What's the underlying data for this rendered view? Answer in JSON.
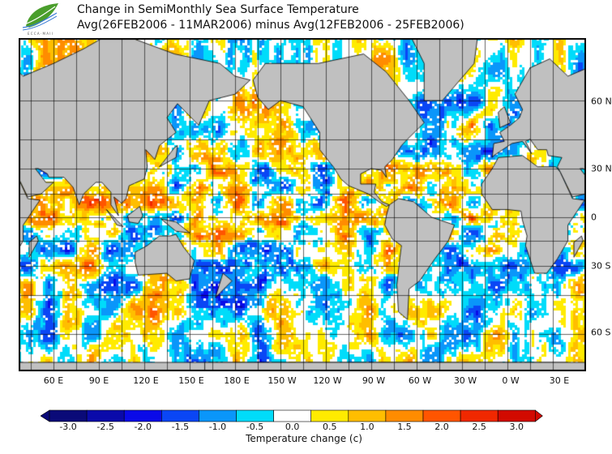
{
  "title": {
    "line1": "Change in SemiMonthly Sea Surface Temperature",
    "line2": "Avg(26FEB2006 - 11MAR2006) minus Avg(12FEB2006 - 25FEB2006)"
  },
  "logo": {
    "text": "ECCA MAII"
  },
  "map": {
    "lon_labels": [
      "60 E",
      "90 E",
      "120 E",
      "150 E",
      "180 E",
      "150 W",
      "120 W",
      "90 W",
      "60 W",
      "30 W",
      "0 W",
      "30 E"
    ],
    "lat_labels": [
      "60 N",
      "30 N",
      "0",
      "30 S",
      "60 S"
    ],
    "land_color": "#c0c0c0"
  },
  "colorbar": {
    "labels": [
      "-3.0",
      "-2.5",
      "-2.0",
      "-1.5",
      "-1.0",
      "-0.5",
      "0.0",
      "0.5",
      "1.0",
      "1.5",
      "2.0",
      "2.5",
      "3.0"
    ],
    "values": [
      -3.0,
      -2.5,
      -2.0,
      -1.5,
      -1.0,
      -0.5,
      0.0,
      0.5,
      1.0,
      1.5,
      2.0,
      2.5,
      3.0
    ],
    "colors": [
      "#0a0a78",
      "#0a0aaa",
      "#0a0ae8",
      "#0a46f5",
      "#0a96fa",
      "#00dcfa",
      "#ffffff",
      "#ffeb00",
      "#ffbe00",
      "#ff8c00",
      "#ff5500",
      "#f02800",
      "#d20a00"
    ],
    "title": "Temperature change  (c)"
  }
}
